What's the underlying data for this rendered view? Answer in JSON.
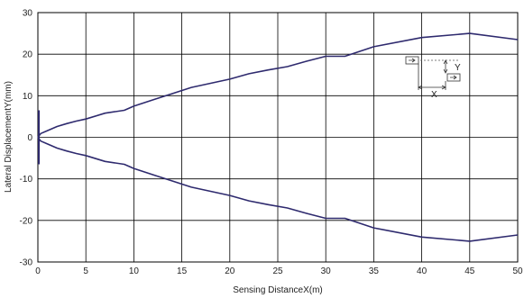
{
  "chart_data": {
    "type": "line",
    "title": "",
    "xlabel": "Sensing DistanceX(m)",
    "ylabel": "Lateral DisplacementY(mm)",
    "xlim": [
      0,
      50
    ],
    "ylim": [
      -30,
      30
    ],
    "x_ticks": [
      0,
      5,
      10,
      15,
      20,
      25,
      30,
      35,
      40,
      45,
      50
    ],
    "y_ticks": [
      -30,
      -20,
      -10,
      0,
      10,
      20,
      30
    ],
    "grid": true,
    "legend": "none",
    "line_color": "#2e2a6e",
    "x": [
      0,
      0.3,
      1,
      2,
      3,
      4,
      5,
      7,
      9,
      10,
      12,
      14,
      16,
      18,
      20,
      22,
      24,
      26,
      28,
      30,
      32,
      35,
      40,
      45,
      50
    ],
    "series": [
      {
        "values": [
          0,
          0.9,
          1.6,
          2.6,
          3.3,
          3.9,
          4.4,
          5.8,
          6.5,
          7.5,
          9,
          10.5,
          12,
          13,
          14,
          15.3,
          16.2,
          17,
          18.3,
          19.5,
          19.5,
          21.8,
          24,
          25,
          23.5
        ]
      },
      {
        "values": [
          0,
          -0.9,
          -1.6,
          -2.6,
          -3.3,
          -3.9,
          -4.4,
          -5.8,
          -6.5,
          -7.5,
          -9,
          -10.5,
          -12,
          -13,
          -14,
          -15.3,
          -16.2,
          -17,
          -18.3,
          -19.5,
          -19.5,
          -21.8,
          -24,
          -25,
          -23.5
        ]
      }
    ],
    "origin_marker": {
      "x": 0.1,
      "y_min": -6.5,
      "y_max": 6.5
    }
  },
  "inset": {
    "x_label": "X",
    "y_label": "Y"
  }
}
